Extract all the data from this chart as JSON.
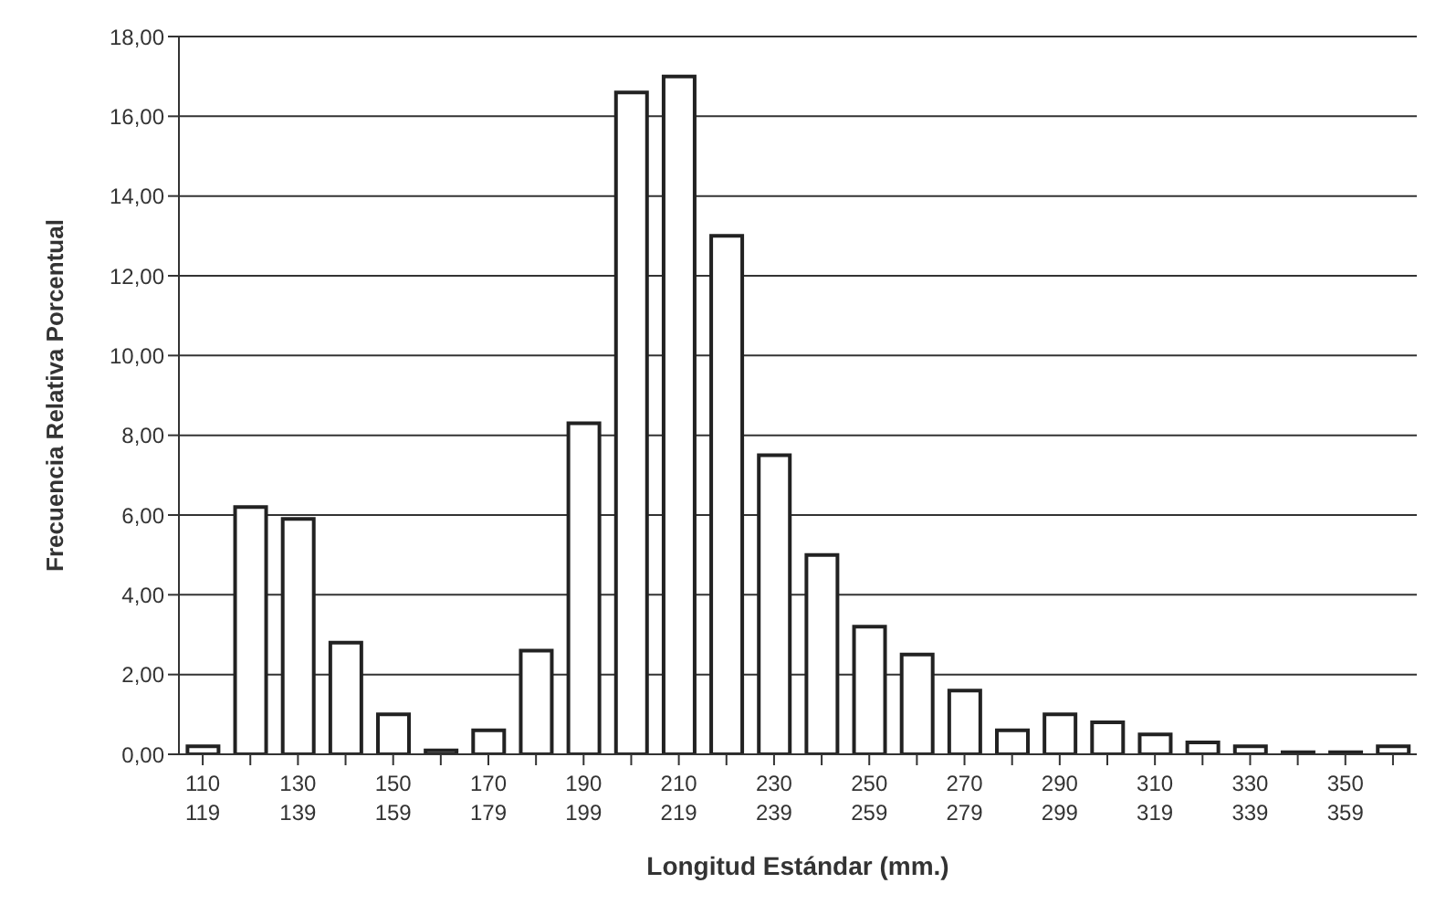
{
  "chart_data": {
    "type": "bar",
    "xlabel": "Longitud Estándar (mm.)",
    "ylabel": "Frecuencia Relativa Porcentual",
    "categories": [
      "110\n119",
      null,
      "130\n139",
      null,
      "150\n159",
      null,
      "170\n179",
      null,
      "190\n199",
      null,
      "210\n219",
      null,
      "230\n239",
      null,
      "250\n259",
      null,
      "270\n279",
      null,
      "290\n299",
      null,
      "310\n319",
      null,
      "330\n339",
      null,
      "350\n359",
      null
    ],
    "values": [
      0.2,
      6.2,
      5.9,
      2.8,
      1.0,
      0.1,
      0.6,
      2.6,
      8.3,
      16.6,
      17.0,
      13.0,
      7.5,
      5.0,
      3.2,
      2.5,
      1.6,
      0.6,
      1.0,
      0.8,
      0.5,
      0.3,
      0.2,
      0.05,
      0.05,
      0.2
    ],
    "color": "#ffffff",
    "ylim": [
      0,
      18
    ],
    "yticks": [
      {
        "value": 0,
        "label": "0,00"
      },
      {
        "value": 2,
        "label": "2,00"
      },
      {
        "value": 4,
        "label": "4,00"
      },
      {
        "value": 6,
        "label": "6,00"
      },
      {
        "value": 8,
        "label": "8,00"
      },
      {
        "value": 10,
        "label": "10,00"
      },
      {
        "value": 12,
        "label": "12,00"
      },
      {
        "value": 14,
        "label": "14,00"
      },
      {
        "value": 16,
        "label": "16,00"
      },
      {
        "value": 18,
        "label": "18,00"
      }
    ],
    "grid": "y"
  }
}
